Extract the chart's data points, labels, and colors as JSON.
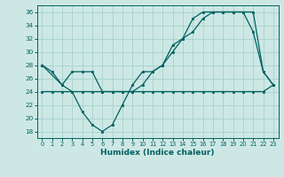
{
  "xlabel": "Humidex (Indice chaleur)",
  "ylabel": "",
  "background_color": "#cde8e4",
  "grid_color": "#aad4d0",
  "line_color": "#006060",
  "xlim": [
    -0.5,
    23.5
  ],
  "ylim": [
    17,
    37
  ],
  "yticks": [
    18,
    20,
    22,
    24,
    26,
    28,
    30,
    32,
    34,
    36
  ],
  "xticks": [
    0,
    1,
    2,
    3,
    4,
    5,
    6,
    7,
    8,
    9,
    10,
    11,
    12,
    13,
    14,
    15,
    16,
    17,
    18,
    19,
    20,
    21,
    22,
    23
  ],
  "series1": {
    "x": [
      0,
      1,
      2,
      3,
      4,
      5,
      6,
      7,
      8,
      9,
      10,
      11,
      12,
      13,
      14,
      15,
      16,
      17,
      18,
      19,
      20,
      21,
      22,
      23
    ],
    "y": [
      28,
      27,
      25,
      24,
      21,
      19,
      18,
      19,
      22,
      25,
      27,
      27,
      28,
      31,
      32,
      35,
      36,
      36,
      36,
      36,
      36,
      33,
      27,
      25
    ]
  },
  "series2": {
    "x": [
      0,
      2,
      3,
      4,
      5,
      6,
      7,
      8,
      9,
      10,
      11,
      12,
      13,
      14,
      15,
      16,
      17,
      18,
      19,
      20,
      21,
      22,
      23
    ],
    "y": [
      28,
      25,
      27,
      27,
      27,
      24,
      24,
      24,
      24,
      25,
      27,
      28,
      30,
      32,
      33,
      35,
      36,
      36,
      36,
      36,
      36,
      27,
      25
    ]
  },
  "series3": {
    "x": [
      0,
      1,
      2,
      3,
      4,
      5,
      6,
      7,
      8,
      9,
      10,
      11,
      12,
      13,
      14,
      15,
      16,
      17,
      18,
      19,
      20,
      21,
      22,
      23
    ],
    "y": [
      24,
      24,
      24,
      24,
      24,
      24,
      24,
      24,
      24,
      24,
      24,
      24,
      24,
      24,
      24,
      24,
      24,
      24,
      24,
      24,
      24,
      24,
      24,
      25
    ]
  }
}
